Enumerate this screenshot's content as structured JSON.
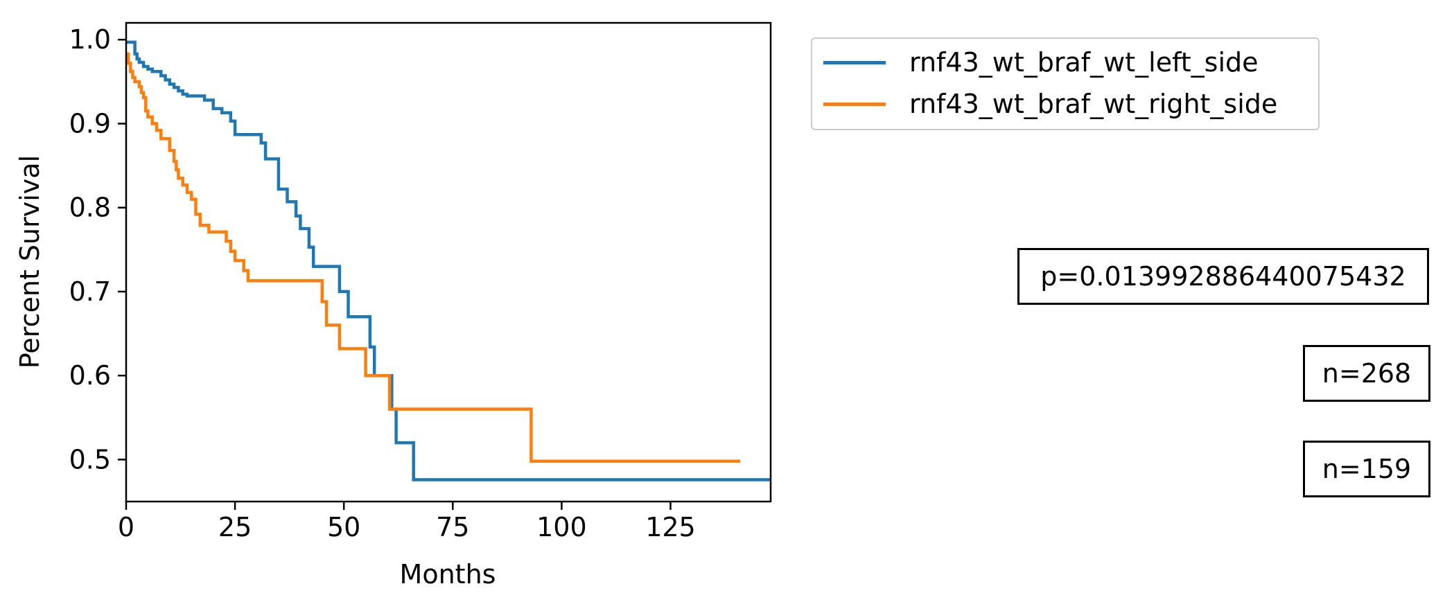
{
  "chart_data": {
    "type": "line",
    "xlabel": "Months",
    "ylabel": "Percent Survival",
    "xlim": [
      0,
      148
    ],
    "ylim": [
      0.45,
      1.02
    ],
    "xticks": [
      0,
      25,
      50,
      75,
      100,
      125
    ],
    "xtick_labels": [
      "0",
      "25",
      "50",
      "75",
      "100",
      "125"
    ],
    "yticks": [
      0.5,
      0.6,
      0.7,
      0.8,
      0.9,
      1.0
    ],
    "ytick_labels": [
      "0.5",
      "0.6",
      "0.7",
      "0.8",
      "0.9",
      "1.0"
    ],
    "grid": false,
    "legend_position": "upper-right outside",
    "series": [
      {
        "name": "rnf43_wt_braf_wt_left_side",
        "color": "#1f77b4",
        "step": "post",
        "x": [
          0,
          2,
          2.5,
          3,
          4,
          5,
          6,
          8,
          9,
          10,
          11,
          12,
          13,
          14,
          18,
          20,
          22,
          24,
          25,
          31,
          32,
          35,
          37,
          39,
          40,
          42,
          43,
          44,
          49,
          51,
          56,
          57,
          61,
          62,
          63,
          66,
          148
        ],
        "y": [
          0.997,
          0.983,
          0.977,
          0.973,
          0.968,
          0.965,
          0.962,
          0.957,
          0.952,
          0.947,
          0.943,
          0.939,
          0.935,
          0.933,
          0.928,
          0.918,
          0.913,
          0.903,
          0.887,
          0.877,
          0.858,
          0.822,
          0.807,
          0.79,
          0.775,
          0.753,
          0.73,
          0.73,
          0.7,
          0.67,
          0.634,
          0.6,
          0.56,
          0.52,
          0.52,
          0.476,
          0.476
        ]
      },
      {
        "name": "rnf43_wt_braf_wt_right_side",
        "color": "#ff7f0e",
        "step": "post",
        "x": [
          0,
          0.5,
          1,
          1.5,
          2,
          3,
          3.5,
          4,
          4.5,
          5,
          6,
          7,
          8,
          10,
          11,
          11.5,
          12,
          13,
          14,
          15,
          16,
          17,
          19,
          23,
          24,
          25,
          27,
          28,
          45,
          46,
          47,
          49,
          55,
          59.5,
          60.5,
          93,
          141
        ],
        "y": [
          0.983,
          0.972,
          0.962,
          0.955,
          0.95,
          0.944,
          0.937,
          0.931,
          0.915,
          0.908,
          0.9,
          0.892,
          0.882,
          0.868,
          0.855,
          0.845,
          0.835,
          0.827,
          0.818,
          0.81,
          0.792,
          0.779,
          0.771,
          0.76,
          0.748,
          0.737,
          0.725,
          0.713,
          0.688,
          0.66,
          0.66,
          0.632,
          0.6,
          0.6,
          0.56,
          0.498,
          0.498
        ]
      }
    ],
    "annotations": [
      "p=0.013992886440075432",
      "n=268",
      "n=159"
    ]
  }
}
